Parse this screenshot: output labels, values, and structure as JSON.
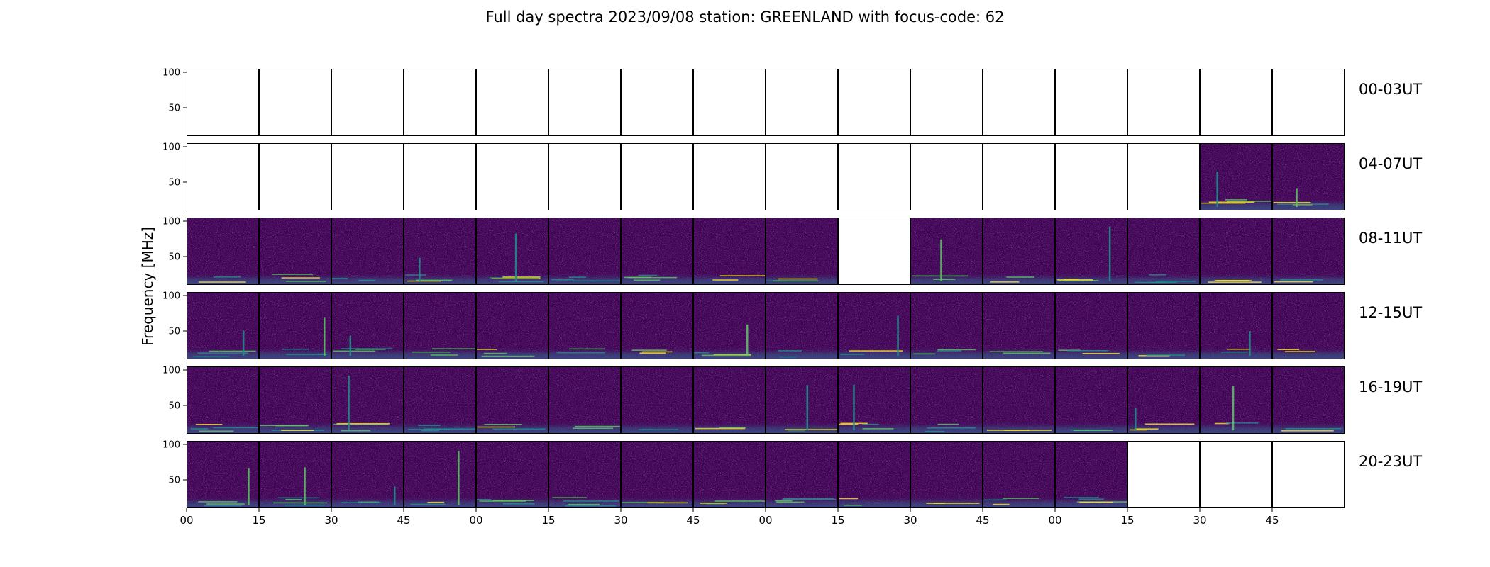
{
  "chart_data": {
    "type": "heatmap",
    "title": "Full day spectra 2023/09/08 station: GREENLAND with focus-code: 62",
    "ylabel": "Frequency [MHz]",
    "ylim": [
      10,
      105
    ],
    "yticks": [
      50,
      100
    ],
    "colormap": "viridis",
    "x_tick_labels": [
      "00",
      "15",
      "30",
      "45",
      "00",
      "15",
      "30",
      "45",
      "00",
      "15",
      "30",
      "45",
      "00",
      "15",
      "30",
      "45"
    ],
    "rows": [
      {
        "label": "00-03UT",
        "panels": [
          0,
          0,
          0,
          0,
          0,
          0,
          0,
          0,
          0,
          0,
          0,
          0,
          0,
          0,
          0,
          0
        ]
      },
      {
        "label": "04-07UT",
        "panels": [
          0,
          0,
          0,
          0,
          0,
          0,
          0,
          0,
          0,
          0,
          0,
          0,
          0,
          0,
          1,
          1
        ]
      },
      {
        "label": "08-11UT",
        "panels": [
          1,
          1,
          1,
          1,
          1,
          1,
          1,
          1,
          1,
          0,
          1,
          1,
          1,
          1,
          1,
          1
        ]
      },
      {
        "label": "12-15UT",
        "panels": [
          1,
          1,
          1,
          1,
          1,
          1,
          1,
          1,
          1,
          1,
          1,
          1,
          1,
          1,
          1,
          1
        ]
      },
      {
        "label": "16-19UT",
        "panels": [
          1,
          1,
          1,
          1,
          1,
          1,
          1,
          1,
          1,
          1,
          1,
          1,
          1,
          1,
          1,
          1
        ]
      },
      {
        "label": "20-23UT",
        "panels": [
          1,
          1,
          1,
          1,
          1,
          1,
          1,
          1,
          1,
          1,
          1,
          1,
          1,
          0,
          0,
          0
        ]
      }
    ],
    "colors": {
      "background": "#440154",
      "low": "#3b528b",
      "mid": "#21918c",
      "high": "#5ec962",
      "peak": "#fde725"
    }
  }
}
